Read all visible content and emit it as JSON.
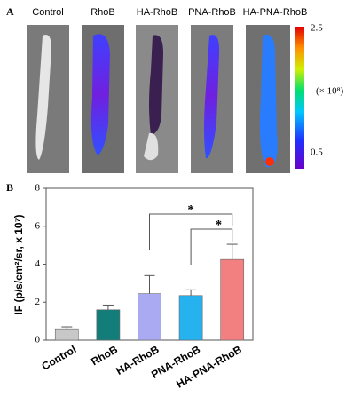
{
  "panel_labels": [
    "A",
    "B"
  ],
  "panel_a": {
    "titles": [
      "Control",
      "RhoB",
      "HA-RhoB",
      "PNA-RhoB",
      "HA-PNA-RhoB"
    ],
    "colorbar": {
      "max_label": "2.5",
      "unit_label": "(× 10⁸)",
      "min_label": "0.5"
    }
  },
  "chart_data": {
    "type": "bar",
    "y_label": "IF (p/s/cm²/sr, x 10⁷)",
    "categories": [
      "Control",
      "RhoB",
      "HA-RhoB",
      "PNA-RhoB",
      "HA-PNA-RhoB"
    ],
    "values": [
      0.6,
      1.6,
      2.45,
      2.35,
      4.25
    ],
    "errors": [
      0.1,
      0.25,
      0.95,
      0.3,
      0.8
    ],
    "colors": [
      "#c8c8c8",
      "#137d7a",
      "#aaaaf2",
      "#25b2ee",
      "#f28080"
    ],
    "ylim": [
      0,
      8
    ],
    "yticks": [
      0,
      2,
      4,
      6,
      8
    ],
    "annotations": [
      {
        "text": "*",
        "between": [
          "HA-RhoB",
          "HA-PNA-RhoB"
        ]
      },
      {
        "text": "*",
        "between": [
          "PNA-RhoB",
          "HA-PNA-RhoB"
        ]
      }
    ]
  }
}
